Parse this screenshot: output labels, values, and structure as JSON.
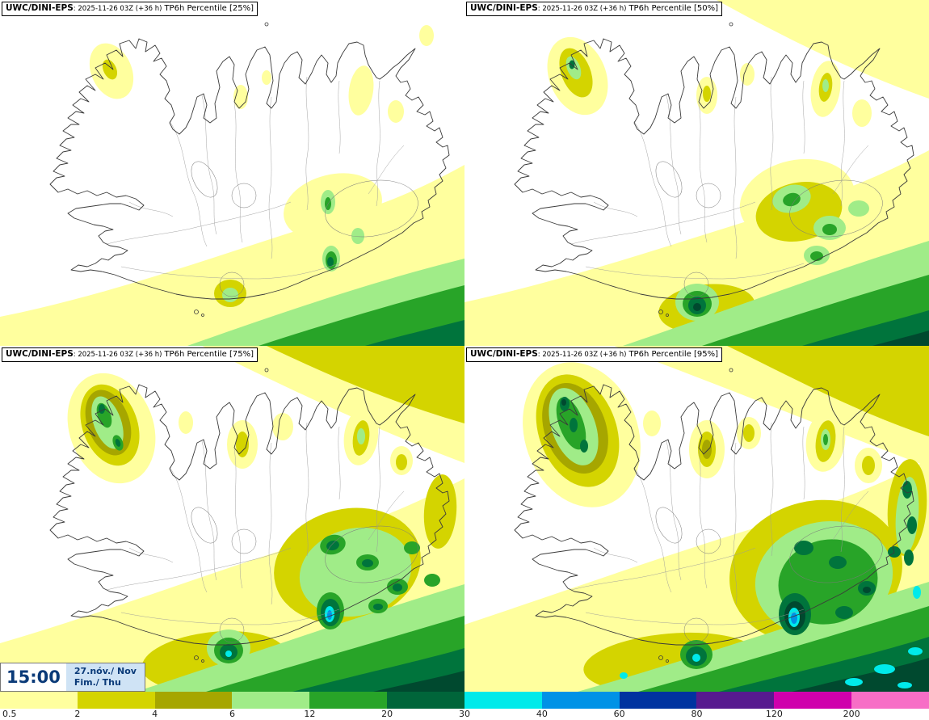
{
  "panels": [
    {
      "model": "UWC/DINI-EPS",
      "run": ": 2025-11-26 03Z (+36 h)",
      "param": "TP6h Percentile [25%]"
    },
    {
      "model": "UWC/DINI-EPS",
      "run": ": 2025-11-26 03Z (+36 h)",
      "param": "TP6h Percentile [50%]"
    },
    {
      "model": "UWC/DINI-EPS",
      "run": ": 2025-11-26 03Z (+36 h)",
      "param": "TP6h Percentile [75%]"
    },
    {
      "model": "UWC/DINI-EPS",
      "run": ": 2025-11-26 03Z (+36 h)",
      "param": "TP6h Percentile [95%]"
    }
  ],
  "time_box": {
    "time": "15:00",
    "date_line": "27.nóv./ Nov",
    "day_line": "Fim./ Thu"
  },
  "colorbar": {
    "labels": [
      "0.5",
      "2",
      "4",
      "6",
      "12",
      "20",
      "30",
      "40",
      "60",
      "80",
      "120",
      "200"
    ],
    "colors": [
      "#ffff9e",
      "#d4d400",
      "#a6a600",
      "#a0ec88",
      "#28a428",
      "#00653a",
      "#00eaea",
      "#0092e6",
      "#0033a0",
      "#571a8f",
      "#cf00ac",
      "#f76ec6"
    ]
  }
}
